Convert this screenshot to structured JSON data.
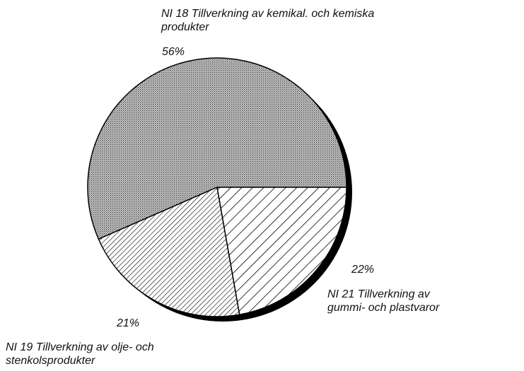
{
  "chart_data": {
    "type": "pie",
    "categories": [
      "NI 18 Tillverkning av kemikal. och kemiska produkter",
      "NI 19 Tillverkning av olje- och stenkolsprodukter",
      "NI 21 Tillverkning av gummi- och plastvaror"
    ],
    "values": [
      56,
      21,
      22
    ],
    "value_labels": [
      "56%",
      "21%",
      "22%"
    ]
  }
}
